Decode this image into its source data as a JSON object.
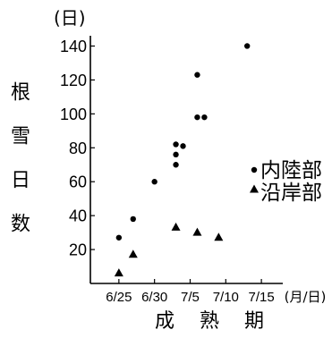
{
  "chart_data": {
    "type": "scatter",
    "ylabel": "根雪日数",
    "yunit": "(日)",
    "xlabel": "成熟期",
    "xunit": "(月/日)",
    "ylim": [
      0,
      145
    ],
    "yticks": [
      20,
      40,
      60,
      80,
      100,
      120,
      140
    ],
    "xlim": [
      "6/21",
      "7/18"
    ],
    "xticks": [
      "6/25",
      "6/30",
      "7/5",
      "7/10",
      "7/15"
    ],
    "grid": false,
    "legend_position": "right",
    "series": [
      {
        "name": "内陸部",
        "marker": "circle",
        "color": "#000000",
        "points": [
          {
            "x": "6/25",
            "y": 27
          },
          {
            "x": "6/27",
            "y": 38
          },
          {
            "x": "6/30",
            "y": 60
          },
          {
            "x": "7/3",
            "y": 70
          },
          {
            "x": "7/3",
            "y": 76
          },
          {
            "x": "7/3",
            "y": 82
          },
          {
            "x": "7/4",
            "y": 81
          },
          {
            "x": "7/6",
            "y": 123
          },
          {
            "x": "7/6",
            "y": 98
          },
          {
            "x": "7/7",
            "y": 98
          },
          {
            "x": "7/13",
            "y": 140
          }
        ]
      },
      {
        "name": "沿岸部",
        "marker": "triangle",
        "color": "#000000",
        "points": [
          {
            "x": "6/25",
            "y": 6
          },
          {
            "x": "6/27",
            "y": 17
          },
          {
            "x": "7/3",
            "y": 33
          },
          {
            "x": "7/6",
            "y": 30
          },
          {
            "x": "7/9",
            "y": 27
          }
        ]
      }
    ]
  }
}
